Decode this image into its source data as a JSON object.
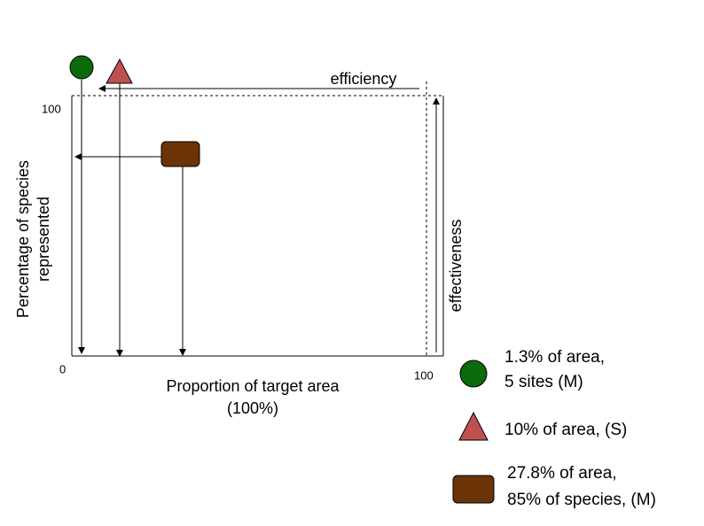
{
  "axes": {
    "y_label": [
      "Percentage of species",
      "represented"
    ],
    "x_label": [
      "Proportion of target area",
      "(100%)"
    ],
    "y_max": "100",
    "origin": "0",
    "x_max": "100"
  },
  "annotations": {
    "efficiency": "efficiency",
    "effectiveness": "effectiveness"
  },
  "legend": [
    {
      "lines": [
        "1.3% of area,",
        "5 sites (M)"
      ]
    },
    {
      "lines": [
        "10% of area, (S)"
      ]
    },
    {
      "lines": [
        "27.8% of area,",
        "85% of species, (M)"
      ]
    }
  ]
}
